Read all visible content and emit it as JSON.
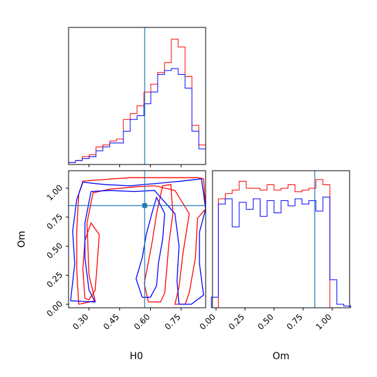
{
  "chart_data": {
    "type": "corner",
    "colors": {
      "red": "#ff0000",
      "blue": "#0000ff",
      "truth": "#1f77b4"
    },
    "truth": {
      "H0": 0.572,
      "Om": 0.85
    },
    "axes": {
      "H0": {
        "label": "H0",
        "range": [
          0.2,
          0.87
        ],
        "ticks": [
          "0.30",
          "0.45",
          "0.60",
          "0.75"
        ],
        "tick_values": [
          0.3,
          0.45,
          0.6,
          0.75
        ]
      },
      "Om": {
        "label": "Om",
        "range": [
          -0.03,
          1.15
        ],
        "ticks": [
          "0.00",
          "0.25",
          "0.50",
          "0.75",
          "1.00"
        ],
        "tick_values": [
          0.0,
          0.25,
          0.5,
          0.75,
          1.0
        ]
      }
    },
    "hist_H0": {
      "bin_edges": [
        0.2,
        0.2335,
        0.267,
        0.3005,
        0.334,
        0.3675,
        0.401,
        0.4345,
        0.468,
        0.5015,
        0.535,
        0.5685,
        0.602,
        0.6355,
        0.669,
        0.7025,
        0.736,
        0.7695,
        0.803,
        0.8365,
        0.87
      ],
      "series": [
        {
          "color": "red",
          "values": [
            1,
            2,
            4,
            5,
            9,
            10,
            12,
            13,
            23,
            26,
            30,
            37,
            41,
            47,
            52,
            64,
            60,
            45,
            20,
            10
          ]
        },
        {
          "color": "blue",
          "values": [
            1,
            2,
            3,
            4,
            7,
            9,
            11,
            11,
            17,
            23,
            25,
            31,
            37,
            46,
            48,
            49,
            46,
            39,
            17,
            8
          ]
        }
      ],
      "ymax": 70
    },
    "hist_Om": {
      "bin_edges": [
        -0.04,
        0.02,
        0.08,
        0.14,
        0.2,
        0.26,
        0.32,
        0.38,
        0.44,
        0.5,
        0.56,
        0.62,
        0.68,
        0.74,
        0.8,
        0.86,
        0.92,
        0.98,
        1.04,
        1.1,
        1.16
      ],
      "series": [
        {
          "color": "red",
          "values": [
            0,
            62,
            65,
            67,
            72,
            68,
            68,
            67,
            70,
            67,
            68,
            70,
            66,
            67,
            68,
            73,
            70,
            0,
            0,
            0
          ]
        },
        {
          "color": "blue",
          "values": [
            6,
            59,
            62,
            46,
            60,
            56,
            62,
            52,
            61,
            54,
            61,
            58,
            62,
            59,
            61,
            55,
            63,
            16,
            2,
            1
          ]
        }
      ],
      "ymax": 78
    },
    "contours": [
      {
        "color": "red",
        "points": [
          [
            0.25,
            0.0
          ],
          [
            0.24,
            0.3
          ],
          [
            0.24,
            0.62
          ],
          [
            0.25,
            0.95
          ],
          [
            0.27,
            1.06
          ],
          [
            0.34,
            1.07
          ],
          [
            0.42,
            1.08
          ],
          [
            0.5,
            1.09
          ],
          [
            0.6,
            1.09
          ],
          [
            0.72,
            1.09
          ],
          [
            0.83,
            1.09
          ],
          [
            0.86,
            1.08
          ],
          [
            0.87,
            0.82
          ],
          [
            0.83,
            0.74
          ],
          [
            0.82,
            0.4
          ],
          [
            0.79,
            0.1
          ],
          [
            0.77,
            0.0
          ],
          [
            0.72,
            0.0
          ],
          [
            0.74,
            0.15
          ],
          [
            0.76,
            0.45
          ],
          [
            0.79,
            0.78
          ],
          [
            0.72,
            0.98
          ],
          [
            0.62,
            1.02
          ],
          [
            0.52,
            1.01
          ],
          [
            0.4,
            0.99
          ],
          [
            0.32,
            0.96
          ],
          [
            0.29,
            0.7
          ],
          [
            0.3,
            0.25
          ],
          [
            0.33,
            0.03
          ],
          [
            0.25,
            0.0
          ]
        ]
      },
      {
        "color": "red",
        "points": [
          [
            0.59,
            0.02
          ],
          [
            0.57,
            0.18
          ],
          [
            0.59,
            0.36
          ],
          [
            0.61,
            0.55
          ],
          [
            0.63,
            0.78
          ],
          [
            0.66,
            1.02
          ],
          [
            0.7,
            1.03
          ],
          [
            0.71,
            0.78
          ],
          [
            0.69,
            0.52
          ],
          [
            0.68,
            0.3
          ],
          [
            0.67,
            0.1
          ],
          [
            0.65,
            0.02
          ],
          [
            0.59,
            0.02
          ]
        ]
      },
      {
        "color": "red",
        "points": [
          [
            0.28,
            0.05
          ],
          [
            0.27,
            0.3
          ],
          [
            0.28,
            0.55
          ],
          [
            0.31,
            0.7
          ],
          [
            0.35,
            0.6
          ],
          [
            0.34,
            0.35
          ],
          [
            0.33,
            0.12
          ],
          [
            0.3,
            0.04
          ],
          [
            0.28,
            0.05
          ]
        ]
      },
      {
        "color": "blue",
        "points": [
          [
            0.21,
            0.03
          ],
          [
            0.23,
            0.35
          ],
          [
            0.22,
            0.63
          ],
          [
            0.24,
            0.9
          ],
          [
            0.27,
            1.05
          ],
          [
            0.38,
            1.03
          ],
          [
            0.5,
            1.02
          ],
          [
            0.63,
            1.04
          ],
          [
            0.75,
            1.06
          ],
          [
            0.85,
            1.08
          ],
          [
            0.87,
            0.82
          ],
          [
            0.84,
            0.62
          ],
          [
            0.84,
            0.35
          ],
          [
            0.86,
            0.08
          ],
          [
            0.8,
            0.0
          ],
          [
            0.74,
            0.0
          ],
          [
            0.73,
            0.2
          ],
          [
            0.74,
            0.5
          ],
          [
            0.72,
            0.78
          ],
          [
            0.62,
            0.98
          ],
          [
            0.52,
            0.97
          ],
          [
            0.4,
            0.98
          ],
          [
            0.31,
            0.97
          ],
          [
            0.28,
            0.7
          ],
          [
            0.28,
            0.4
          ],
          [
            0.3,
            0.12
          ],
          [
            0.33,
            0.02
          ],
          [
            0.21,
            0.03
          ]
        ]
      },
      {
        "color": "blue",
        "points": [
          [
            0.56,
            0.06
          ],
          [
            0.53,
            0.22
          ],
          [
            0.56,
            0.4
          ],
          [
            0.58,
            0.6
          ],
          [
            0.61,
            0.8
          ],
          [
            0.63,
            0.92
          ],
          [
            0.67,
            0.78
          ],
          [
            0.66,
            0.56
          ],
          [
            0.64,
            0.36
          ],
          [
            0.63,
            0.16
          ],
          [
            0.6,
            0.06
          ],
          [
            0.56,
            0.06
          ]
        ]
      }
    ]
  }
}
